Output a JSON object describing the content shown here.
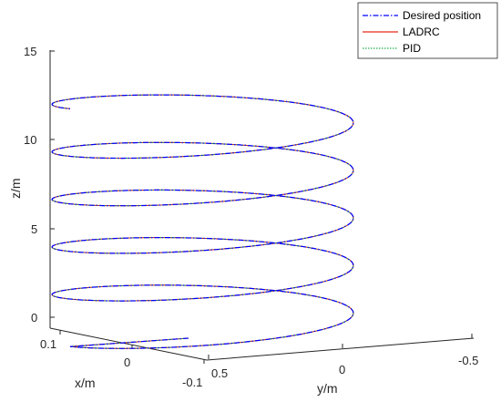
{
  "chart_data": {
    "type": "line",
    "subtype": "3d-helix",
    "title": "",
    "xlabel": "x/m",
    "ylabel": "y/m",
    "zlabel": "z/m",
    "x_ticks": [
      "0.1",
      "0",
      "-0.1"
    ],
    "y_ticks": [
      "0.5",
      "0",
      "-0.5"
    ],
    "z_ticks": [
      "0",
      "5",
      "10",
      "15"
    ],
    "xlim": [
      -0.1,
      0.1
    ],
    "ylim": [
      -0.5,
      0.5
    ],
    "zlim": [
      0,
      15
    ],
    "grid": false,
    "legend_position": "top-right",
    "helix": {
      "radius_y": 0.5,
      "radius_x": 0.1,
      "turns": 5,
      "z_per_turn": 2.5,
      "z_start": 0.4,
      "z_end": 13.8
    },
    "series": [
      {
        "name": "Desired position",
        "color": "#0000ff",
        "dash": "6,2,1.5,2"
      },
      {
        "name": "LADRC",
        "color": "#e82a1a",
        "dash": ""
      },
      {
        "name": "PID",
        "color": "#22b14c",
        "dash": "1.5,1.5"
      }
    ]
  }
}
